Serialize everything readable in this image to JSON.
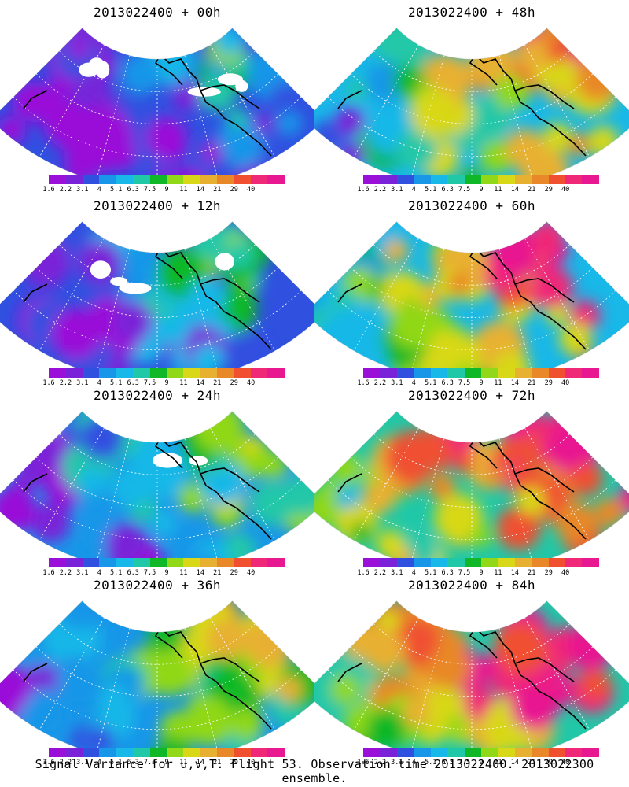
{
  "panels": [
    {
      "title": "2013022400 + 00h",
      "level": 0
    },
    {
      "title": "2013022400 + 48h",
      "level": 4
    },
    {
      "title": "2013022400 + 12h",
      "level": 1
    },
    {
      "title": "2013022400 + 60h",
      "level": 5
    },
    {
      "title": "2013022400 + 24h",
      "level": 2
    },
    {
      "title": "2013022400 + 72h",
      "level": 6
    },
    {
      "title": "2013022400 + 36h",
      "level": 3
    },
    {
      "title": "2013022400 + 84h",
      "level": 7
    }
  ],
  "colorbar": {
    "colors": [
      "#9a10d8",
      "#7a22d8",
      "#3050e0",
      "#1896e8",
      "#18b8e8",
      "#20c8a8",
      "#10b828",
      "#90d818",
      "#d8d818",
      "#e8b030",
      "#e88828",
      "#f05030",
      "#f02878",
      "#e81890"
    ],
    "labels": [
      "1.6",
      "2.2",
      "3.1",
      "4",
      "5.1",
      "6.3",
      "7.5",
      "9",
      "11",
      "14",
      "21",
      "29",
      "40"
    ]
  },
  "footer": "Signal Variance for u,v,T. Flight 53. Observation time 2013022400. 2013022300 ensemble."
}
